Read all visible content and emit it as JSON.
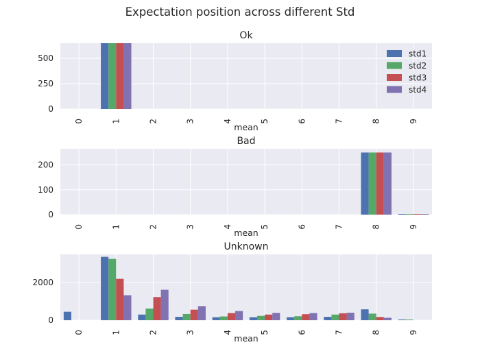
{
  "chart_data": {
    "suptitle": "Expectation position across different Std",
    "series_names": [
      "std1",
      "std2",
      "std3",
      "std4"
    ],
    "colors": [
      "#4c72b0",
      "#55a868",
      "#c44e52",
      "#8172b2"
    ],
    "categories": [
      "0",
      "1",
      "2",
      "3",
      "4",
      "5",
      "6",
      "7",
      "8",
      "9"
    ],
    "xlabel": "mean",
    "grid": true,
    "legend_position": "top-right",
    "charts": [
      {
        "type": "bar",
        "title": "Ok",
        "ylim": [
          0,
          650
        ],
        "yticks": [
          0,
          250,
          500
        ],
        "series": [
          {
            "name": "std1",
            "values": [
              0,
              650,
              0,
              0,
              0,
              0,
              0,
              0,
              0,
              0
            ]
          },
          {
            "name": "std2",
            "values": [
              0,
              650,
              0,
              0,
              0,
              0,
              0,
              0,
              0,
              0
            ]
          },
          {
            "name": "std3",
            "values": [
              0,
              650,
              0,
              0,
              0,
              0,
              0,
              0,
              0,
              0
            ]
          },
          {
            "name": "std4",
            "values": [
              0,
              650,
              0,
              0,
              0,
              0,
              0,
              0,
              0,
              0
            ]
          }
        ]
      },
      {
        "type": "bar",
        "title": "Bad",
        "ylim": [
          0,
          265
        ],
        "yticks": [
          0,
          100,
          200
        ],
        "series": [
          {
            "name": "std1",
            "values": [
              0,
              0,
              0,
              0,
              0,
              0,
              0,
              0,
              250,
              1
            ]
          },
          {
            "name": "std2",
            "values": [
              0,
              0,
              0,
              0,
              0,
              0,
              0,
              0,
              250,
              1
            ]
          },
          {
            "name": "std3",
            "values": [
              0,
              0,
              0,
              0,
              0,
              0,
              0,
              0,
              250,
              1
            ]
          },
          {
            "name": "std4",
            "values": [
              0,
              0,
              0,
              0,
              0,
              0,
              0,
              0,
              250,
              1
            ]
          }
        ]
      },
      {
        "type": "bar",
        "title": "Unknown",
        "ylim": [
          0,
          3500
        ],
        "yticks": [
          0,
          2000
        ],
        "series": [
          {
            "name": "std1",
            "values": [
              450,
              3370,
              300,
              180,
              160,
              160,
              160,
              180,
              580,
              40
            ]
          },
          {
            "name": "std2",
            "values": [
              0,
              3260,
              620,
              330,
              200,
              230,
              210,
              300,
              350,
              10
            ]
          },
          {
            "name": "std3",
            "values": [
              0,
              2200,
              1230,
              560,
              380,
              300,
              320,
              370,
              170,
              0
            ]
          },
          {
            "name": "std4",
            "values": [
              0,
              1330,
              1620,
              750,
              490,
              390,
              380,
              400,
              130,
              0
            ]
          }
        ]
      }
    ]
  }
}
